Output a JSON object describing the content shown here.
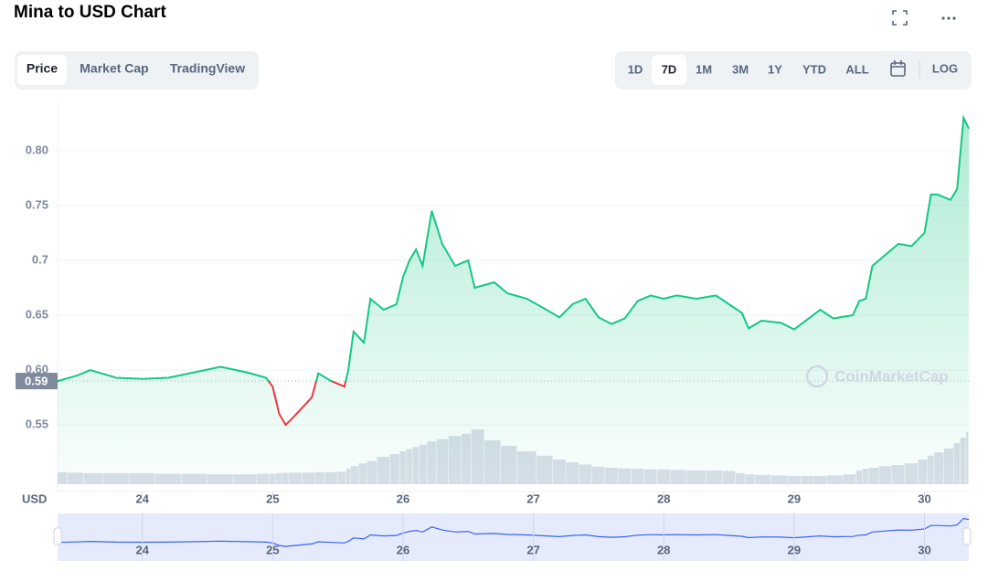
{
  "header": {
    "title": "Mina to USD Chart"
  },
  "tabs": {
    "items": [
      "Price",
      "Market Cap",
      "TradingView"
    ],
    "selected": "Price"
  },
  "ranges": {
    "items": [
      "1D",
      "7D",
      "1M",
      "3M",
      "1Y",
      "YTD",
      "ALL"
    ],
    "selected": "7D",
    "log": "LOG"
  },
  "watermark": "CoinMarketCap",
  "chart_data": {
    "type": "line",
    "ylabel": "USD",
    "current_price": 0.59,
    "current_price_label": "0.59",
    "up_color": "#16c784",
    "down_color": "#ea3943",
    "grid": true,
    "xlim": [
      23.35,
      30.34
    ],
    "ylim": [
      0.496,
      0.844
    ],
    "xticks": [
      24,
      25,
      26,
      27,
      28,
      29,
      30
    ],
    "yticks": [
      0.55,
      {
        "value": 0.6,
        "label": "0.60"
      },
      0.65,
      0.7,
      0.75,
      {
        "value": 0.8,
        "label": "0.80"
      }
    ],
    "x": [
      23.35,
      23.5,
      23.6,
      23.8,
      24.0,
      24.2,
      24.4,
      24.6,
      24.8,
      24.95,
      25.0,
      25.05,
      25.1,
      25.15,
      25.3,
      25.35,
      25.45,
      25.55,
      25.58,
      25.62,
      25.7,
      25.75,
      25.85,
      25.95,
      26.0,
      26.05,
      26.1,
      26.15,
      26.22,
      26.3,
      26.4,
      26.5,
      26.55,
      26.7,
      26.8,
      26.95,
      27.1,
      27.2,
      27.3,
      27.4,
      27.5,
      27.6,
      27.7,
      27.8,
      27.9,
      28.0,
      28.1,
      28.25,
      28.4,
      28.5,
      28.6,
      28.65,
      28.75,
      28.9,
      29.0,
      29.1,
      29.2,
      29.3,
      29.45,
      29.5,
      29.55,
      29.6,
      29.7,
      29.8,
      29.9,
      30.0,
      30.05,
      30.1,
      30.2,
      30.25,
      30.3,
      30.34
    ],
    "series": [
      {
        "name": "Price",
        "values": [
          0.59,
          0.595,
          0.6,
          0.593,
          0.592,
          0.593,
          0.598,
          0.603,
          0.598,
          0.593,
          0.585,
          0.56,
          0.55,
          0.556,
          0.575,
          0.597,
          0.59,
          0.585,
          0.6,
          0.635,
          0.625,
          0.665,
          0.655,
          0.66,
          0.685,
          0.7,
          0.71,
          0.695,
          0.745,
          0.715,
          0.695,
          0.7,
          0.675,
          0.68,
          0.67,
          0.665,
          0.655,
          0.648,
          0.66,
          0.665,
          0.648,
          0.642,
          0.647,
          0.663,
          0.668,
          0.665,
          0.668,
          0.665,
          0.668,
          0.66,
          0.652,
          0.638,
          0.645,
          0.643,
          0.637,
          0.646,
          0.655,
          0.647,
          0.65,
          0.663,
          0.665,
          0.695,
          0.705,
          0.715,
          0.713,
          0.725,
          0.76,
          0.76,
          0.755,
          0.765,
          0.83,
          0.82
        ]
      },
      {
        "name": "Volume",
        "values": [
          22,
          21,
          20,
          20,
          20,
          19,
          19,
          18,
          18,
          19,
          19,
          20,
          21,
          21,
          21,
          22,
          22,
          23,
          28,
          33,
          38,
          42,
          50,
          55,
          60,
          64,
          68,
          72,
          78,
          82,
          88,
          92,
          100,
          80,
          70,
          60,
          52,
          45,
          40,
          36,
          32,
          30,
          29,
          28,
          27,
          27,
          26,
          25,
          25,
          24,
          20,
          18,
          17,
          16,
          15,
          15,
          15,
          16,
          18,
          25,
          28,
          30,
          33,
          35,
          38,
          45,
          52,
          58,
          65,
          75,
          85,
          95
        ]
      }
    ]
  }
}
